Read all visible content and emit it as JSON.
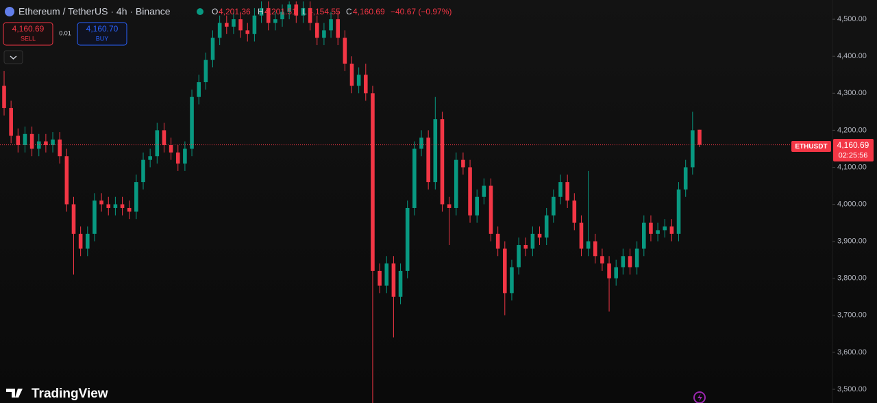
{
  "header": {
    "symbol": "Ethereum / TetherUS · 4h · Binance",
    "o_label": "O",
    "o": "4,201.36",
    "h_label": "H",
    "h": "4,201.51",
    "l_label": "L",
    "l": "4,154.55",
    "c_label": "C",
    "c": "4,160.69",
    "change": "−40.67 (−0.97%)"
  },
  "trade": {
    "sell_price": "4,160.69",
    "sell": "SELL",
    "spread": "0.01",
    "buy_price": "4,160.70",
    "buy": "BUY"
  },
  "price_tag": {
    "symbol": "ETHUSDT",
    "countdown": "02:25:56"
  },
  "logo": "TradingView",
  "chart_data": {
    "type": "candlestick",
    "up_color": "#089981",
    "down_color": "#f23645",
    "ylim": [
      3463,
      4552
    ],
    "yticks": [
      {
        "value": 3500,
        "label": "3,500.00"
      },
      {
        "value": 3600,
        "label": "3,600.00"
      },
      {
        "value": 3700,
        "label": "3,700.00"
      },
      {
        "value": 3800,
        "label": "3,800.00"
      },
      {
        "value": 3900,
        "label": "3,900.00"
      },
      {
        "value": 4000,
        "label": "4,000.00"
      },
      {
        "value": 4100,
        "label": "4,100.00"
      },
      {
        "value": 4200,
        "label": "4,200.00"
      },
      {
        "value": 4300,
        "label": "4,300.00"
      },
      {
        "value": 4400,
        "label": "4,400.00"
      },
      {
        "value": 4500,
        "label": "4,500.00"
      }
    ],
    "last_price": {
      "value": 4160.69,
      "label": "4,160.69"
    },
    "open": [
      4320,
      4260,
      4185,
      4160,
      4190,
      4150,
      4170,
      4160,
      4175,
      4130,
      4000,
      3920,
      3880,
      3920,
      4010,
      4000,
      3990,
      4000,
      3990,
      3980,
      4060,
      4120,
      4130,
      4200,
      4160,
      4140,
      4110,
      4150,
      4290,
      4330,
      4390,
      4450,
      4490,
      4480,
      4500,
      4470,
      4460,
      4510,
      4530,
      4490,
      4500,
      4520,
      4540,
      4510,
      4530,
      4490,
      4450,
      4470,
      4500,
      4450,
      4380,
      4320,
      4350,
      4300,
      3820,
      3780,
      3840,
      3750,
      3820,
      3990,
      4150,
      4180,
      4060,
      4230,
      4000,
      3990,
      4120,
      4100,
      3970,
      4020,
      4050,
      3920,
      3880,
      3760,
      3830,
      3890,
      3880,
      3920,
      3910,
      3970,
      4020,
      4060,
      4010,
      3950,
      3880,
      3900,
      3860,
      3840,
      3800,
      3830,
      3860,
      3830,
      3880,
      3950,
      3920,
      3930,
      3940,
      3920,
      4040,
      4100,
      4201.36
    ],
    "high": [
      4360,
      4280,
      4205,
      4210,
      4210,
      4190,
      4190,
      4195,
      4195,
      4150,
      4020,
      3940,
      3940,
      4030,
      4030,
      4020,
      4020,
      4020,
      4010,
      4080,
      4140,
      4150,
      4220,
      4220,
      4180,
      4160,
      4170,
      4310,
      4350,
      4410,
      4470,
      4510,
      4510,
      4520,
      4520,
      4490,
      4530,
      4548,
      4548,
      4520,
      4540,
      4548,
      4548,
      4548,
      4548,
      4510,
      4490,
      4520,
      4520,
      4470,
      4400,
      4370,
      4380,
      4320,
      3840,
      3860,
      3860,
      3840,
      4010,
      4170,
      4200,
      4200,
      4290,
      4250,
      4020,
      4140,
      4140,
      4120,
      4040,
      4070,
      4070,
      3940,
      3900,
      3850,
      3910,
      3910,
      3940,
      3940,
      3990,
      4040,
      4080,
      4080,
      4030,
      3970,
      4090,
      3920,
      3880,
      3860,
      3850,
      3880,
      3880,
      3900,
      3970,
      3970,
      3950,
      3960,
      3960,
      4060,
      4120,
      4250,
      4201.51
    ],
    "low": [
      4240,
      4165,
      4140,
      4140,
      4130,
      4130,
      4140,
      4140,
      4110,
      3980,
      3810,
      3860,
      3860,
      3900,
      3980,
      3970,
      3970,
      3970,
      3960,
      3960,
      4040,
      4100,
      4110,
      4140,
      4120,
      4090,
      4090,
      4130,
      4270,
      4310,
      4370,
      4430,
      4460,
      4460,
      4450,
      4440,
      4440,
      4490,
      4470,
      4470,
      4480,
      4500,
      4490,
      4490,
      4470,
      4430,
      4430,
      4450,
      4430,
      4360,
      4300,
      4300,
      4280,
      3463,
      3760,
      3760,
      3640,
      3730,
      3800,
      3970,
      4130,
      4040,
      4040,
      3980,
      3890,
      3970,
      4080,
      3950,
      3950,
      4000,
      3900,
      3860,
      3700,
      3740,
      3810,
      3860,
      3860,
      3890,
      3890,
      3950,
      4000,
      3990,
      3930,
      3860,
      3860,
      3840,
      3820,
      3710,
      3780,
      3810,
      3810,
      3810,
      3860,
      3900,
      3900,
      3910,
      3900,
      3900,
      4020,
      4080,
      4154.55
    ],
    "close": [
      4260,
      4185,
      4160,
      4190,
      4150,
      4170,
      4160,
      4175,
      4130,
      4000,
      3920,
      3880,
      3920,
      4010,
      4000,
      3990,
      4000,
      3990,
      3980,
      4060,
      4120,
      4130,
      4200,
      4160,
      4140,
      4110,
      4150,
      4290,
      4330,
      4390,
      4450,
      4490,
      4480,
      4500,
      4470,
      4460,
      4510,
      4530,
      4490,
      4500,
      4520,
      4540,
      4510,
      4530,
      4490,
      4450,
      4470,
      4500,
      4450,
      4380,
      4320,
      4350,
      4300,
      3820,
      3780,
      3840,
      3750,
      3820,
      3990,
      4150,
      4180,
      4060,
      4230,
      4000,
      3990,
      4120,
      4100,
      3970,
      4020,
      4050,
      3920,
      3880,
      3760,
      3830,
      3890,
      3880,
      3920,
      3910,
      3970,
      4020,
      4060,
      4010,
      3950,
      3880,
      3900,
      3860,
      3840,
      3800,
      3830,
      3860,
      3830,
      3880,
      3950,
      3920,
      3930,
      3940,
      3920,
      4040,
      4100,
      4200,
      4160.69
    ]
  }
}
